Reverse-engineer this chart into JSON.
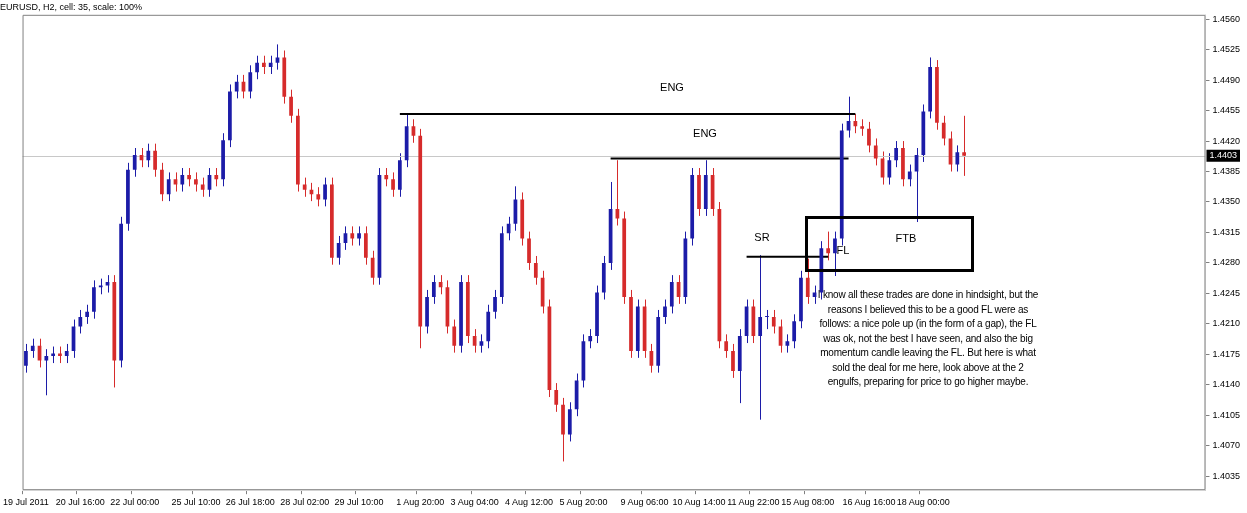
{
  "chart_data": {
    "type": "candlestick",
    "title": "EURUSD, H2, cell: 35, scale: 100%",
    "categories": [
      "19 Jul 2011",
      null,
      null,
      null,
      null,
      null,
      null,
      null,
      "20 Jul 16:00",
      null,
      null,
      null,
      null,
      null,
      null,
      null,
      "22 Jul 00:00",
      null,
      null,
      null,
      null,
      null,
      null,
      null,
      null,
      "25 Jul 10:00",
      null,
      null,
      null,
      null,
      null,
      null,
      null,
      "26 Jul 18:00",
      null,
      null,
      null,
      null,
      null,
      null,
      null,
      "28 Jul 02:00",
      null,
      null,
      null,
      null,
      null,
      null,
      null,
      "29 Jul 10:00",
      null,
      null,
      null,
      null,
      null,
      null,
      null,
      null,
      "1 Aug 20:00",
      null,
      null,
      null,
      null,
      null,
      null,
      null,
      "3 Aug 04:00",
      null,
      null,
      null,
      null,
      null,
      null,
      null,
      "4 Aug 12:00",
      null,
      null,
      null,
      null,
      null,
      null,
      null,
      "5 Aug 20:00",
      null,
      null,
      null,
      null,
      null,
      null,
      null,
      null,
      "9 Aug 06:00",
      null,
      null,
      null,
      null,
      null,
      null,
      null,
      "10 Aug 14:00",
      null,
      null,
      null,
      null,
      null,
      null,
      null,
      "11 Aug 22:00",
      null,
      null,
      null,
      null,
      null,
      null,
      null,
      "15 Aug 08:00",
      null,
      null,
      null,
      null,
      null,
      null,
      null,
      null,
      "16 Aug 16:00",
      null,
      null,
      null,
      null,
      null,
      null,
      null,
      "18 Aug 00:00",
      null,
      null,
      null,
      null,
      null,
      null,
      null,
      null,
      null,
      null,
      null,
      null,
      null,
      null,
      null,
      null,
      null,
      null,
      null,
      null,
      null,
      null,
      null,
      null,
      null,
      null,
      null,
      null,
      null,
      null,
      null,
      null,
      null,
      null,
      null,
      null,
      null,
      null,
      null,
      null,
      null
    ],
    "ohlc": [
      [
        1.4162,
        1.4187,
        1.4154,
        1.4179
      ],
      [
        1.4179,
        1.4193,
        1.4171,
        1.4185
      ],
      [
        1.4185,
        1.4193,
        1.416,
        1.4168
      ],
      [
        1.4168,
        1.4181,
        1.4128,
        1.4173
      ],
      [
        1.4173,
        1.4184,
        1.4165,
        1.4176
      ],
      [
        1.4176,
        1.4184,
        1.4165,
        1.4173
      ],
      [
        1.4173,
        1.4187,
        1.4165,
        1.4179
      ],
      [
        1.4179,
        1.4215,
        1.4171,
        1.4207
      ],
      [
        1.4207,
        1.4226,
        1.4199,
        1.4218
      ],
      [
        1.4218,
        1.4232,
        1.421,
        1.4224
      ],
      [
        1.4224,
        1.426,
        1.4216,
        1.4252
      ],
      [
        1.4252,
        1.4262,
        1.4244,
        1.4254
      ],
      [
        1.4254,
        1.4266,
        1.4246,
        1.4258
      ],
      [
        1.4258,
        1.4266,
        1.4137,
        1.4168
      ],
      [
        1.4168,
        1.4333,
        1.416,
        1.4325
      ],
      [
        1.4325,
        1.4395,
        1.4317,
        1.4387
      ],
      [
        1.4387,
        1.4412,
        1.4379,
        1.4404
      ],
      [
        1.4404,
        1.4412,
        1.439,
        1.4398
      ],
      [
        1.4398,
        1.4417,
        1.439,
        1.4409
      ],
      [
        1.4409,
        1.4417,
        1.4379,
        1.4387
      ],
      [
        1.4387,
        1.4395,
        1.4351,
        1.4359
      ],
      [
        1.4359,
        1.4384,
        1.4351,
        1.4376
      ],
      [
        1.4376,
        1.4384,
        1.4362,
        1.437
      ],
      [
        1.437,
        1.4389,
        1.4362,
        1.4381
      ],
      [
        1.4381,
        1.4389,
        1.4368,
        1.4376
      ],
      [
        1.4376,
        1.4384,
        1.4362,
        1.437
      ],
      [
        1.437,
        1.4378,
        1.4356,
        1.4364
      ],
      [
        1.4364,
        1.4389,
        1.4356,
        1.4381
      ],
      [
        1.4381,
        1.4389,
        1.4368,
        1.4376
      ],
      [
        1.4376,
        1.4429,
        1.4368,
        1.4421
      ],
      [
        1.4421,
        1.4485,
        1.4413,
        1.4477
      ],
      [
        1.4477,
        1.4496,
        1.4469,
        1.4488
      ],
      [
        1.4488,
        1.4496,
        1.4469,
        1.4477
      ],
      [
        1.4477,
        1.4507,
        1.4469,
        1.4499
      ],
      [
        1.4499,
        1.4518,
        1.4491,
        1.451
      ],
      [
        1.451,
        1.4518,
        1.4497,
        1.4505
      ],
      [
        1.4505,
        1.4518,
        1.4497,
        1.451
      ],
      [
        1.451,
        1.4531,
        1.4502,
        1.4516
      ],
      [
        1.4516,
        1.4524,
        1.4463,
        1.4471
      ],
      [
        1.4471,
        1.4479,
        1.4441,
        1.4449
      ],
      [
        1.4449,
        1.4457,
        1.4362,
        1.437
      ],
      [
        1.437,
        1.4378,
        1.4356,
        1.4364
      ],
      [
        1.4364,
        1.4372,
        1.4351,
        1.4359
      ],
      [
        1.4359,
        1.4367,
        1.4345,
        1.4353
      ],
      [
        1.4353,
        1.4378,
        1.4345,
        1.437
      ],
      [
        1.437,
        1.4378,
        1.4278,
        1.4286
      ],
      [
        1.4286,
        1.4311,
        1.4278,
        1.4303
      ],
      [
        1.4303,
        1.4322,
        1.4295,
        1.4314
      ],
      [
        1.4314,
        1.4322,
        1.43,
        1.4308
      ],
      [
        1.4308,
        1.4322,
        1.43,
        1.4314
      ],
      [
        1.4314,
        1.4322,
        1.4278,
        1.4286
      ],
      [
        1.4286,
        1.4294,
        1.4255,
        1.4263
      ],
      [
        1.4263,
        1.4389,
        1.4255,
        1.4381
      ],
      [
        1.4381,
        1.4389,
        1.4368,
        1.4376
      ],
      [
        1.4376,
        1.4384,
        1.4356,
        1.4364
      ],
      [
        1.4364,
        1.4406,
        1.4356,
        1.4398
      ],
      [
        1.4398,
        1.4451,
        1.439,
        1.4437
      ],
      [
        1.4437,
        1.4445,
        1.4418,
        1.4426
      ],
      [
        1.4426,
        1.4434,
        1.4182,
        1.4207
      ],
      [
        1.4207,
        1.4249,
        1.4199,
        1.4241
      ],
      [
        1.4241,
        1.4266,
        1.4233,
        1.4258
      ],
      [
        1.4258,
        1.4266,
        1.4244,
        1.4252
      ],
      [
        1.4252,
        1.426,
        1.4199,
        1.4207
      ],
      [
        1.4207,
        1.4215,
        1.4177,
        1.4185
      ],
      [
        1.4185,
        1.4266,
        1.4177,
        1.4258
      ],
      [
        1.4258,
        1.4266,
        1.4188,
        1.4196
      ],
      [
        1.4196,
        1.4204,
        1.4177,
        1.4185
      ],
      [
        1.4185,
        1.4198,
        1.4177,
        1.419
      ],
      [
        1.419,
        1.4232,
        1.4182,
        1.4224
      ],
      [
        1.4224,
        1.4249,
        1.4216,
        1.4241
      ],
      [
        1.4241,
        1.4322,
        1.4233,
        1.4314
      ],
      [
        1.4314,
        1.4333,
        1.4306,
        1.4325
      ],
      [
        1.4325,
        1.4368,
        1.4317,
        1.4353
      ],
      [
        1.4353,
        1.4361,
        1.43,
        1.4308
      ],
      [
        1.4308,
        1.4316,
        1.4272,
        1.428
      ],
      [
        1.428,
        1.4288,
        1.4255,
        1.4263
      ],
      [
        1.4263,
        1.4271,
        1.4222,
        1.423
      ],
      [
        1.423,
        1.4238,
        1.4126,
        1.4134
      ],
      [
        1.4134,
        1.4142,
        1.4109,
        1.4117
      ],
      [
        1.4117,
        1.4125,
        1.4052,
        1.4083
      ],
      [
        1.4083,
        1.412,
        1.4075,
        1.4112
      ],
      [
        1.4112,
        1.4153,
        1.4104,
        1.4145
      ],
      [
        1.4145,
        1.4198,
        1.4137,
        1.419
      ],
      [
        1.419,
        1.4204,
        1.4182,
        1.4196
      ],
      [
        1.4196,
        1.4254,
        1.4188,
        1.4246
      ],
      [
        1.4246,
        1.4288,
        1.4238,
        1.428
      ],
      [
        1.428,
        1.4373,
        1.4272,
        1.4342
      ],
      [
        1.4342,
        1.4398,
        1.4323,
        1.4331
      ],
      [
        1.4331,
        1.4339,
        1.4233,
        1.4241
      ],
      [
        1.4241,
        1.4249,
        1.4171,
        1.4179
      ],
      [
        1.4179,
        1.4238,
        1.4171,
        1.423
      ],
      [
        1.423,
        1.4238,
        1.4171,
        1.4179
      ],
      [
        1.4179,
        1.4187,
        1.4154,
        1.4162
      ],
      [
        1.4162,
        1.4226,
        1.4154,
        1.4218
      ],
      [
        1.4218,
        1.4238,
        1.421,
        1.423
      ],
      [
        1.423,
        1.4266,
        1.4222,
        1.4258
      ],
      [
        1.4258,
        1.4266,
        1.4233,
        1.4241
      ],
      [
        1.4241,
        1.4316,
        1.4233,
        1.4308
      ],
      [
        1.4308,
        1.4389,
        1.43,
        1.4381
      ],
      [
        1.4381,
        1.4389,
        1.4334,
        1.4342
      ],
      [
        1.4342,
        1.4398,
        1.4334,
        1.4381
      ],
      [
        1.4381,
        1.4389,
        1.4334,
        1.4342
      ],
      [
        1.4342,
        1.435,
        1.4182,
        1.419
      ],
      [
        1.419,
        1.4198,
        1.4171,
        1.4179
      ],
      [
        1.4179,
        1.4187,
        1.4148,
        1.4156
      ],
      [
        1.4156,
        1.4204,
        1.4119,
        1.4196
      ],
      [
        1.4196,
        1.4238,
        1.4188,
        1.423
      ],
      [
        1.423,
        1.4238,
        1.4188,
        1.4196
      ],
      [
        1.4196,
        1.4289,
        1.41,
        1.4218
      ],
      [
        1.4218,
        1.4226,
        1.4204,
        1.4218
      ],
      [
        1.4218,
        1.4226,
        1.4199,
        1.4207
      ],
      [
        1.4207,
        1.4215,
        1.4177,
        1.4185
      ],
      [
        1.4185,
        1.4198,
        1.4177,
        1.419
      ],
      [
        1.419,
        1.4221,
        1.4182,
        1.4213
      ],
      [
        1.4213,
        1.4271,
        1.4205,
        1.4263
      ],
      [
        1.4263,
        1.4285,
        1.4233,
        1.4241
      ],
      [
        1.4241,
        1.4254,
        1.4233,
        1.4246
      ],
      [
        1.4246,
        1.4305,
        1.4238,
        1.4297
      ],
      [
        1.4297,
        1.4316,
        1.4283,
        1.4291
      ],
      [
        1.4291,
        1.4316,
        1.4265,
        1.4308
      ],
      [
        1.4308,
        1.444,
        1.43,
        1.4432
      ],
      [
        1.4432,
        1.4471,
        1.4424,
        1.4443
      ],
      [
        1.4443,
        1.4451,
        1.4429,
        1.4437
      ],
      [
        1.4437,
        1.4445,
        1.4426,
        1.4434
      ],
      [
        1.4434,
        1.4442,
        1.4407,
        1.4415
      ],
      [
        1.4415,
        1.4423,
        1.4392,
        1.44
      ],
      [
        1.44,
        1.4408,
        1.437,
        1.4378
      ],
      [
        1.4378,
        1.4406,
        1.437,
        1.4398
      ],
      [
        1.4398,
        1.442,
        1.439,
        1.4412
      ],
      [
        1.4412,
        1.442,
        1.4368,
        1.4376
      ],
      [
        1.4376,
        1.4393,
        1.4368,
        1.4385
      ],
      [
        1.4385,
        1.4412,
        1.4327,
        1.4404
      ],
      [
        1.4404,
        1.4462,
        1.4396,
        1.4454
      ],
      [
        1.4454,
        1.4516,
        1.4446,
        1.4505
      ],
      [
        1.4505,
        1.4513,
        1.4433,
        1.4441
      ],
      [
        1.4441,
        1.4449,
        1.4415,
        1.4423
      ],
      [
        1.4423,
        1.4431,
        1.4385,
        1.4393
      ],
      [
        1.4393,
        1.4415,
        1.4385,
        1.4407
      ],
      [
        1.4407,
        1.4449,
        1.438,
        1.4403
      ],
      null,
      null,
      null,
      null,
      null,
      null,
      null,
      null,
      null,
      null,
      null,
      null,
      null,
      null,
      null,
      null,
      null,
      null,
      null,
      null,
      null,
      null,
      null,
      null,
      null,
      null,
      null,
      null,
      null,
      null,
      null,
      null,
      null,
      null,
      null
    ],
    "colors": [
      "#1c1ca8",
      "#1c1ca8",
      "#d62b2b",
      "#1c1ca8",
      "#1c1ca8",
      "#d62b2b",
      "#1c1ca8",
      "#1c1ca8",
      "#1c1ca8",
      "#1c1ca8",
      "#1c1ca8",
      "#1c1ca8",
      "#1c1ca8",
      "#d62b2b",
      "#1c1ca8",
      "#1c1ca8",
      "#1c1ca8",
      "#d62b2b",
      "#1c1ca8",
      "#d62b2b",
      "#d62b2b",
      "#1c1ca8",
      "#d62b2b",
      "#1c1ca8",
      "#d62b2b",
      "#d62b2b",
      "#d62b2b",
      "#1c1ca8",
      "#d62b2b",
      "#1c1ca8",
      "#1c1ca8",
      "#1c1ca8",
      "#d62b2b",
      "#1c1ca8",
      "#1c1ca8",
      "#d62b2b",
      "#1c1ca8",
      "#1c1ca8",
      "#d62b2b",
      "#d62b2b",
      "#d62b2b",
      "#d62b2b",
      "#d62b2b",
      "#d62b2b",
      "#1c1ca8",
      "#d62b2b",
      "#1c1ca8",
      "#1c1ca8",
      "#d62b2b",
      "#1c1ca8",
      "#d62b2b",
      "#d62b2b",
      "#1c1ca8",
      "#d62b2b",
      "#d62b2b",
      "#1c1ca8",
      "#1c1ca8",
      "#d62b2b",
      "#d62b2b",
      "#1c1ca8",
      "#1c1ca8",
      "#d62b2b",
      "#d62b2b",
      "#d62b2b",
      "#1c1ca8",
      "#d62b2b",
      "#d62b2b",
      "#1c1ca8",
      "#1c1ca8",
      "#1c1ca8",
      "#1c1ca8",
      "#1c1ca8",
      "#1c1ca8",
      "#d62b2b",
      "#d62b2b",
      "#d62b2b",
      "#d62b2b",
      "#d62b2b",
      "#d62b2b",
      "#d62b2b",
      "#1c1ca8",
      "#1c1ca8",
      "#1c1ca8",
      "#1c1ca8",
      "#1c1ca8",
      "#1c1ca8",
      "#1c1ca8",
      "#d62b2b",
      "#d62b2b",
      "#d62b2b",
      "#1c1ca8",
      "#d62b2b",
      "#d62b2b",
      "#1c1ca8",
      "#1c1ca8",
      "#1c1ca8",
      "#d62b2b",
      "#1c1ca8",
      "#1c1ca8",
      "#d62b2b",
      "#1c1ca8",
      "#d62b2b",
      "#d62b2b",
      "#d62b2b",
      "#d62b2b",
      "#1c1ca8",
      "#1c1ca8",
      "#d62b2b",
      "#1c1ca8",
      "#1c1ca8",
      "#d62b2b",
      "#d62b2b",
      "#1c1ca8",
      "#1c1ca8",
      "#1c1ca8",
      "#d62b2b",
      "#1c1ca8",
      "#1c1ca8",
      "#d62b2b",
      "#1c1ca8",
      "#1c1ca8",
      "#1c1ca8",
      "#d62b2b",
      "#d62b2b",
      "#d62b2b",
      "#d62b2b",
      "#d62b2b",
      "#1c1ca8",
      "#1c1ca8",
      "#d62b2b",
      "#1c1ca8",
      "#1c1ca8",
      "#1c1ca8",
      "#1c1ca8",
      "#d62b2b",
      "#d62b2b",
      "#d62b2b",
      "#1c1ca8",
      "#d62b2b",
      null,
      null,
      null,
      null,
      null,
      null,
      null,
      null,
      null,
      null,
      null,
      null,
      null,
      null,
      null,
      null,
      null,
      null,
      null,
      null,
      null,
      null,
      null,
      null,
      null,
      null,
      null,
      null,
      null,
      null,
      null,
      null,
      null,
      null,
      null
    ],
    "series": [
      {
        "type": "line",
        "color": "#000000",
        "values": [
          null,
          null,
          null,
          null,
          null,
          null,
          null,
          null,
          null,
          null,
          null,
          null,
          null,
          null,
          null,
          null,
          null,
          null,
          null,
          null,
          null,
          null,
          null,
          null,
          null,
          null,
          null,
          null,
          null,
          null,
          null,
          null,
          null,
          null,
          null,
          null,
          null,
          null,
          null,
          null,
          null,
          null,
          null,
          null,
          null,
          null,
          null,
          null,
          null,
          null,
          null,
          null,
          null,
          null,
          null,
          1.4451,
          null,
          null,
          null,
          null,
          null,
          null,
          null,
          null,
          null,
          null,
          null,
          null,
          null,
          null,
          null,
          null,
          null,
          null,
          null,
          null,
          null,
          null,
          null,
          null,
          null,
          null,
          null,
          null,
          null,
          null,
          null,
          null,
          null,
          null,
          null,
          null,
          null,
          null,
          null,
          null,
          null,
          null,
          null,
          null,
          null,
          null,
          null,
          null,
          null,
          null,
          null,
          null,
          null,
          null,
          null,
          null,
          null,
          null,
          null,
          null,
          null,
          null,
          null,
          null,
          null,
          null,
          1.4451,
          null,
          null,
          null,
          null,
          null,
          null,
          null,
          null,
          null,
          null,
          null,
          null,
          null,
          null,
          null,
          null,
          null,
          null,
          null,
          null,
          null,
          null,
          null,
          null,
          null,
          null,
          null,
          null,
          null,
          null,
          null,
          null,
          null,
          null,
          null,
          null,
          null,
          null,
          null,
          null,
          null,
          null,
          null,
          null,
          null,
          null,
          null,
          null,
          null,
          null,
          null
        ]
      },
      {
        "type": "line",
        "color": "#000000",
        "values": [
          null,
          null,
          null,
          null,
          null,
          null,
          null,
          null,
          null,
          null,
          null,
          null,
          null,
          null,
          null,
          null,
          null,
          null,
          null,
          null,
          null,
          null,
          null,
          null,
          null,
          null,
          null,
          null,
          null,
          null,
          null,
          null,
          null,
          null,
          null,
          null,
          null,
          null,
          null,
          null,
          null,
          null,
          null,
          null,
          null,
          null,
          null,
          null,
          null,
          null,
          null,
          null,
          null,
          null,
          null,
          null,
          null,
          null,
          null,
          null,
          null,
          null,
          null,
          null,
          null,
          null,
          null,
          null,
          null,
          null,
          null,
          null,
          null,
          null,
          null,
          null,
          null,
          null,
          null,
          null,
          null,
          null,
          null,
          null,
          null,
          null,
          1.44,
          null,
          null,
          null,
          null,
          null,
          null,
          null,
          null,
          null,
          null,
          null,
          null,
          null,
          null,
          null,
          null,
          null,
          null,
          null,
          null,
          null,
          null,
          null,
          null,
          null,
          null,
          null,
          null,
          null,
          null,
          null,
          null,
          null,
          null,
          1.44,
          null,
          null,
          null,
          null,
          null,
          null,
          null,
          null,
          null,
          null,
          null,
          null,
          null,
          null,
          null,
          null,
          null,
          null,
          null,
          null,
          null,
          null,
          null,
          null,
          null,
          null,
          null,
          null,
          null,
          null,
          null,
          null,
          null,
          null,
          null,
          null,
          null,
          null,
          null,
          null,
          null,
          null,
          null,
          null,
          null,
          null,
          null,
          null,
          null,
          null,
          null,
          null
        ]
      },
      {
        "type": "line",
        "color": "#000000",
        "values": [
          null,
          null,
          null,
          null,
          null,
          null,
          null,
          null,
          null,
          null,
          null,
          null,
          null,
          null,
          null,
          null,
          null,
          null,
          null,
          null,
          null,
          null,
          null,
          null,
          null,
          null,
          null,
          null,
          null,
          null,
          null,
          null,
          null,
          null,
          null,
          null,
          null,
          null,
          null,
          null,
          null,
          null,
          null,
          null,
          null,
          null,
          null,
          null,
          null,
          null,
          null,
          null,
          null,
          null,
          null,
          null,
          null,
          null,
          null,
          null,
          null,
          null,
          null,
          null,
          null,
          null,
          null,
          null,
          null,
          null,
          null,
          null,
          null,
          null,
          null,
          null,
          null,
          null,
          null,
          null,
          null,
          null,
          null,
          null,
          null,
          null,
          null,
          null,
          null,
          null,
          null,
          null,
          null,
          null,
          null,
          null,
          null,
          null,
          null,
          null,
          null,
          null,
          null,
          null,
          null,
          null,
          1.4287,
          null,
          null,
          null,
          null,
          null,
          null,
          null,
          null,
          null,
          null,
          null,
          1.4287,
          null,
          null,
          null,
          null,
          null,
          null,
          null,
          null,
          null,
          null,
          null,
          null,
          null,
          null,
          null,
          null,
          null,
          null,
          null,
          null,
          null,
          null,
          null,
          null,
          null,
          null,
          null,
          null,
          null,
          null,
          null,
          null,
          null,
          null,
          null,
          null,
          null,
          null,
          null,
          null,
          null,
          null,
          null,
          null,
          null,
          null,
          null,
          null,
          null,
          null,
          null,
          null,
          null,
          null,
          null
        ]
      }
    ],
    "ylim": [
      1.4019,
      1.4565
    ],
    "yticks": [
      {
        "value": 1.456,
        "label": "1.4560"
      },
      {
        "value": 1.4525,
        "label": "1.4525"
      },
      {
        "value": 1.449,
        "label": "1.4490"
      },
      {
        "value": 1.4455,
        "label": "1.4455"
      },
      {
        "value": 1.442,
        "label": "1.4420"
      },
      {
        "value": 1.4385,
        "label": "1.4385"
      },
      {
        "value": 1.435,
        "label": "1.4350"
      },
      {
        "value": 1.4315,
        "label": "1.4315"
      },
      {
        "value": 1.428,
        "label": "1.4280"
      },
      {
        "value": 1.4245,
        "label": "1.4245"
      },
      {
        "value": 1.421,
        "label": "1.4210"
      },
      {
        "value": 1.4175,
        "label": "1.4175"
      },
      {
        "value": 1.414,
        "label": "1.4140"
      },
      {
        "value": 1.4105,
        "label": "1.4105"
      },
      {
        "value": 1.407,
        "label": "1.4070"
      },
      {
        "value": 1.4035,
        "label": "1.4035"
      }
    ],
    "ref_lines": [
      {
        "axis": "y",
        "value": 1.4403,
        "label": "1.4403",
        "color": "#c8c8c8"
      }
    ],
    "annotations": [
      "ENG",
      "ENG",
      "SR",
      "FL",
      "FTB",
      "I know all these trades are done in hindsight, but the reasons I believed this to be a good FL were as follows: a nice pole up (in the form of a gap), the FL was ok, not the best I have seen, and also the big momentum candle leaving the FL. But here is what sold the deal for me here, look above at the 2 engulfs, preparing for price to go higher maybe."
    ]
  }
}
